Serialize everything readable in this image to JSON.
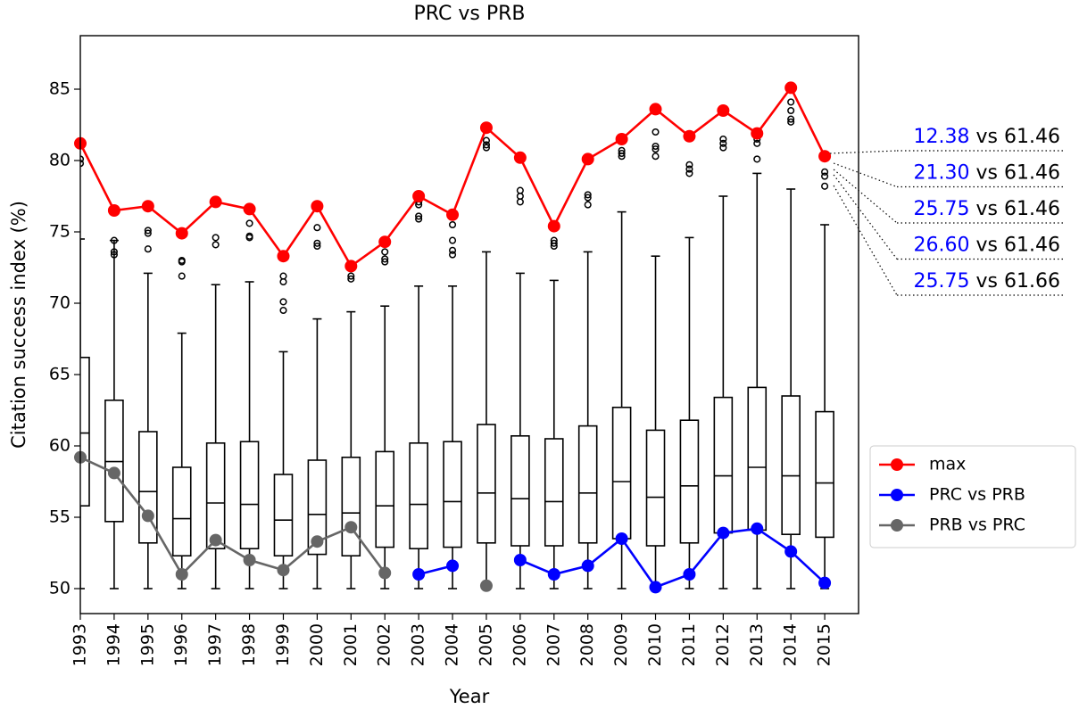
{
  "chart_data": {
    "type": "box",
    "title": "PRC vs PRB",
    "xlabel": "Year",
    "ylabel": "Citation success index (%)",
    "x": [
      1993,
      1994,
      1995,
      1996,
      1997,
      1998,
      1999,
      2000,
      2001,
      2002,
      2003,
      2004,
      2005,
      2006,
      2007,
      2008,
      2009,
      2010,
      2011,
      2012,
      2013,
      2014,
      2015
    ],
    "xlim": [
      1993,
      2016
    ],
    "xticks": [
      1993,
      1994,
      1995,
      1996,
      1997,
      1998,
      1999,
      2000,
      2001,
      2002,
      2003,
      2004,
      2005,
      2006,
      2007,
      2008,
      2009,
      2010,
      2011,
      2012,
      2013,
      2014,
      2015
    ],
    "ylim": [
      48.25,
      88.75
    ],
    "yticks": [
      50,
      55,
      60,
      65,
      70,
      75,
      80,
      85
    ],
    "box_color": "#000000",
    "boxes": [
      {
        "q1": 55.8,
        "median": 60.9,
        "q3": 66.2,
        "whislo": 50,
        "whishi": 74.5,
        "fliers": [
          79.8,
          80.1
        ]
      },
      {
        "q1": 54.7,
        "median": 58.9,
        "q3": 63.2,
        "whislo": 50,
        "whishi": 74.4,
        "fliers": [
          73.4,
          73.6,
          74.4
        ]
      },
      {
        "q1": 53.2,
        "median": 56.8,
        "q3": 61.0,
        "whislo": 50,
        "whishi": 72.1,
        "fliers": [
          73.8,
          74.9,
          75.1
        ]
      },
      {
        "q1": 52.3,
        "median": 54.9,
        "q3": 58.5,
        "whislo": 50,
        "whishi": 67.9,
        "fliers": [
          71.9,
          72.9,
          73.0
        ]
      },
      {
        "q1": 52.8,
        "median": 56.0,
        "q3": 60.2,
        "whislo": 50,
        "whishi": 71.3,
        "fliers": [
          74.1,
          74.6
        ]
      },
      {
        "q1": 52.8,
        "median": 55.9,
        "q3": 60.3,
        "whislo": 50,
        "whishi": 71.5,
        "fliers": [
          74.6,
          74.7,
          75.6
        ]
      },
      {
        "q1": 52.3,
        "median": 54.8,
        "q3": 58.0,
        "whislo": 50,
        "whishi": 66.6,
        "fliers": [
          69.5,
          70.1,
          71.5,
          71.9
        ]
      },
      {
        "q1": 52.4,
        "median": 55.2,
        "q3": 59.0,
        "whislo": 50,
        "whishi": 68.9,
        "fliers": [
          74.0,
          74.2,
          75.3
        ]
      },
      {
        "q1": 52.3,
        "median": 55.3,
        "q3": 59.2,
        "whislo": 50,
        "whishi": 69.4,
        "fliers": [
          71.7,
          71.9
        ]
      },
      {
        "q1": 52.9,
        "median": 55.8,
        "q3": 59.6,
        "whislo": 50,
        "whishi": 69.8,
        "fliers": [
          72.9,
          73.1,
          73.6
        ]
      },
      {
        "q1": 52.8,
        "median": 55.9,
        "q3": 60.2,
        "whislo": 50,
        "whishi": 71.2,
        "fliers": [
          75.9,
          76.1,
          76.9,
          77.1
        ]
      },
      {
        "q1": 52.9,
        "median": 56.1,
        "q3": 60.3,
        "whislo": 50,
        "whishi": 71.2,
        "fliers": [
          73.4,
          73.7,
          74.4,
          75.5
        ]
      },
      {
        "q1": 53.2,
        "median": 56.7,
        "q3": 61.5,
        "whislo": 50,
        "whishi": 73.6,
        "fliers": [
          80.9,
          81.1,
          81.4
        ]
      },
      {
        "q1": 53.0,
        "median": 56.3,
        "q3": 60.7,
        "whislo": 50,
        "whishi": 72.1,
        "fliers": [
          77.1,
          77.5,
          77.9
        ]
      },
      {
        "q1": 53.0,
        "median": 56.1,
        "q3": 60.5,
        "whislo": 50,
        "whishi": 71.6,
        "fliers": [
          74.0,
          74.2,
          74.4
        ]
      },
      {
        "q1": 53.2,
        "median": 56.7,
        "q3": 61.4,
        "whislo": 50,
        "whishi": 73.6,
        "fliers": [
          76.9,
          77.4,
          77.6
        ]
      },
      {
        "q1": 53.5,
        "median": 57.5,
        "q3": 62.7,
        "whislo": 50,
        "whishi": 76.4,
        "fliers": [
          80.3,
          80.5,
          80.7
        ]
      },
      {
        "q1": 53.0,
        "median": 56.4,
        "q3": 61.1,
        "whislo": 50,
        "whishi": 73.3,
        "fliers": [
          80.3,
          80.8,
          81.0,
          82.0
        ]
      },
      {
        "q1": 53.2,
        "median": 57.2,
        "q3": 61.8,
        "whislo": 50,
        "whishi": 74.6,
        "fliers": [
          79.1,
          79.4,
          79.7
        ]
      },
      {
        "q1": 53.9,
        "median": 57.9,
        "q3": 63.4,
        "whislo": 50,
        "whishi": 77.5,
        "fliers": [
          80.9,
          81.2,
          81.5
        ]
      },
      {
        "q1": 54.1,
        "median": 58.5,
        "q3": 64.1,
        "whislo": 50,
        "whishi": 79.1,
        "fliers": [
          80.1,
          81.2,
          81.5
        ]
      },
      {
        "q1": 53.8,
        "median": 57.9,
        "q3": 63.5,
        "whislo": 50,
        "whishi": 78.0,
        "fliers": [
          82.7,
          82.9,
          83.5,
          84.1
        ]
      },
      {
        "q1": 53.6,
        "median": 57.4,
        "q3": 62.4,
        "whislo": 50,
        "whishi": 75.5,
        "fliers": [
          78.2,
          78.9,
          79.2
        ]
      }
    ],
    "series": [
      {
        "name": "max",
        "color": "#ff0000",
        "values": [
          81.2,
          76.5,
          76.8,
          74.9,
          77.1,
          76.6,
          73.3,
          76.8,
          72.6,
          74.3,
          77.5,
          76.2,
          82.3,
          80.2,
          75.4,
          80.1,
          81.5,
          83.6,
          81.7,
          83.5,
          81.9,
          85.1,
          80.3
        ]
      },
      {
        "name": "PRC vs PRB",
        "color": "#0000ff",
        "values": [
          null,
          null,
          null,
          null,
          null,
          null,
          null,
          null,
          null,
          null,
          51.0,
          51.6,
          null,
          52.0,
          51.0,
          51.6,
          53.5,
          50.1,
          51.0,
          53.9,
          54.2,
          52.6,
          50.4
        ]
      },
      {
        "name": "PRB vs PRC",
        "color": "#666666",
        "values": [
          59.2,
          58.1,
          55.1,
          51.0,
          53.4,
          52.0,
          51.3,
          53.3,
          54.3,
          51.1,
          null,
          null,
          50.2,
          null,
          null,
          null,
          null,
          null,
          null,
          null,
          null,
          null,
          null
        ]
      }
    ],
    "legend": "center right",
    "annotations": [
      {
        "number": "12.38",
        "text": "vs 61.46"
      },
      {
        "number": "21.30",
        "text": "vs 61.46"
      },
      {
        "number": "25.75",
        "text": "vs 61.46"
      },
      {
        "number": "26.60",
        "text": "vs 61.46"
      },
      {
        "number": "25.75",
        "text": "vs 61.66"
      }
    ],
    "annotation_color": "#0000ff"
  }
}
